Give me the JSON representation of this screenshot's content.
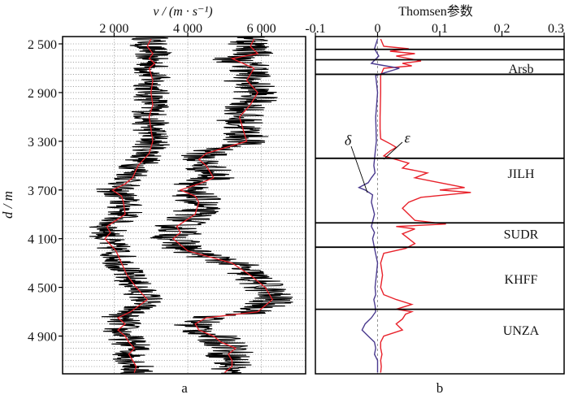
{
  "chart_data": [
    {
      "type": "line",
      "panel_label": "a",
      "top_axis_label": "v / (m · s⁻¹)",
      "left_axis_label": "d / m",
      "x_ticks": [
        "2 000",
        "4 000",
        "6 000"
      ],
      "x_tick_values": [
        2000,
        4000,
        6000
      ],
      "xlim": [
        600,
        7200
      ],
      "y_ticks": [
        "2 500",
        "2 900",
        "3 300",
        "3 700",
        "4 100",
        "4 500",
        "4 900"
      ],
      "y_tick_values": [
        2500,
        2900,
        3300,
        3700,
        4100,
        4500,
        4900
      ],
      "ylim": [
        2440,
        5210
      ],
      "grid": true,
      "series": [
        {
          "color": "#000000",
          "style": "raw log",
          "depth": [
            2460,
            2520,
            2580,
            2620,
            2660,
            2700,
            2800,
            2900,
            3000,
            3100,
            3200,
            3300,
            3400,
            3450,
            3500,
            3600,
            3650,
            3700,
            3750,
            3800,
            3900,
            4000,
            4050,
            4100,
            4200,
            4300,
            4400,
            4500,
            4600,
            4700,
            4750,
            4800,
            4850,
            4900,
            4950,
            5000,
            5050,
            5100,
            5150,
            5200
          ],
          "v": [
            3000,
            2900,
            3050,
            2950,
            3100,
            2950,
            3050,
            3000,
            3050,
            2950,
            3000,
            3050,
            2950,
            2800,
            2650,
            2500,
            2300,
            1950,
            2200,
            2250,
            2300,
            1800,
            1900,
            1750,
            2050,
            2200,
            2350,
            2600,
            2900,
            2450,
            2100,
            2300,
            2100,
            2300,
            2400,
            2550,
            2400,
            2500,
            2600,
            2550
          ],
          "jitter": 520
        },
        {
          "color": "#e8212a",
          "style": "smoothed",
          "depth": [
            2460,
            2520,
            2580,
            2620,
            2660,
            2700,
            2800,
            2900,
            3000,
            3100,
            3200,
            3300,
            3400,
            3450,
            3500,
            3600,
            3650,
            3700,
            3750,
            3800,
            3900,
            4000,
            4050,
            4100,
            4200,
            4300,
            4400,
            4500,
            4600,
            4700,
            4750,
            4800,
            4850,
            4900,
            4950,
            5000,
            5050,
            5100,
            5150,
            5200
          ],
          "v": [
            3000,
            2900,
            3050,
            2950,
            3100,
            2950,
            3050,
            3000,
            3050,
            2950,
            3000,
            3050,
            2950,
            2800,
            2650,
            2500,
            2300,
            1950,
            2200,
            2250,
            2300,
            1800,
            1900,
            1750,
            2050,
            2200,
            2350,
            2600,
            2900,
            2450,
            2100,
            2300,
            2100,
            2300,
            2400,
            2550,
            2400,
            2500,
            2600,
            2550
          ]
        },
        {
          "color": "#000000",
          "style": "raw log",
          "depth": [
            2460,
            2520,
            2580,
            2620,
            2660,
            2700,
            2800,
            2900,
            3000,
            3100,
            3200,
            3300,
            3400,
            3450,
            3500,
            3600,
            3650,
            3700,
            3750,
            3800,
            3900,
            4000,
            4050,
            4100,
            4200,
            4300,
            4400,
            4500,
            4600,
            4700,
            4750,
            4800,
            4850,
            4900,
            4950,
            5000,
            5050,
            5100,
            5150,
            5200
          ],
          "v": [
            5800,
            5700,
            5900,
            5200,
            5500,
            5800,
            5600,
            5900,
            5700,
            5400,
            5500,
            5600,
            4500,
            4300,
            4500,
            4700,
            4300,
            3800,
            4200,
            4300,
            4200,
            3700,
            3800,
            3600,
            4000,
            5200,
            5700,
            6100,
            6300,
            5900,
            4500,
            4200,
            4300,
            4700,
            4900,
            5300,
            5100,
            5200,
            5200,
            5000
          ],
          "jitter": 650
        },
        {
          "color": "#e8212a",
          "style": "smoothed",
          "depth": [
            2460,
            2520,
            2580,
            2620,
            2660,
            2700,
            2800,
            2900,
            3000,
            3100,
            3200,
            3300,
            3400,
            3450,
            3500,
            3600,
            3650,
            3700,
            3750,
            3800,
            3900,
            4000,
            4050,
            4100,
            4200,
            4300,
            4400,
            4500,
            4600,
            4700,
            4750,
            4800,
            4850,
            4900,
            4950,
            5000,
            5050,
            5100,
            5150,
            5200
          ],
          "v": [
            5800,
            5700,
            5900,
            5200,
            5500,
            5800,
            5600,
            5900,
            5700,
            5400,
            5500,
            5600,
            4500,
            4300,
            4500,
            4700,
            4300,
            3800,
            4200,
            4300,
            4200,
            3700,
            3800,
            3600,
            4000,
            5200,
            5700,
            6100,
            6300,
            5900,
            4500,
            4200,
            4300,
            4700,
            4900,
            5300,
            5100,
            5200,
            5200,
            5000
          ]
        }
      ]
    },
    {
      "type": "line",
      "panel_label": "b",
      "top_axis_label": "Thomsen参数",
      "x_ticks": [
        "-0.1",
        "0",
        "0.1",
        "0.2",
        "0.3"
      ],
      "x_tick_values": [
        -0.1,
        0,
        0.1,
        0.2,
        0.3
      ],
      "xlim": [
        -0.1,
        0.3
      ],
      "ylim": [
        2440,
        5210
      ],
      "grid": false,
      "series": [
        {
          "name": "ε",
          "color": "#e8212a",
          "depth": [
            2460,
            2520,
            2540,
            2560,
            2580,
            2600,
            2620,
            2640,
            2660,
            2680,
            2700,
            2760,
            2900,
            3100,
            3200,
            3280,
            3320,
            3350,
            3380,
            3420,
            3450,
            3480,
            3520,
            3560,
            3600,
            3640,
            3680,
            3700,
            3720,
            3760,
            3800,
            3850,
            3900,
            3950,
            3980,
            4000,
            4020,
            4060,
            4100,
            4140,
            4180,
            4220,
            4300,
            4400,
            4500,
            4560,
            4600,
            4640,
            4680,
            4700,
            4720,
            4760,
            4800,
            4850,
            4900,
            4950,
            5000,
            5050,
            5100,
            5150,
            5200
          ],
          "eps": [
            0.005,
            0.01,
            0.05,
            0.02,
            0.06,
            0.03,
            0.05,
            0.07,
            0.04,
            0.055,
            0.01,
            0.005,
            0.005,
            0.004,
            0.004,
            0.005,
            0.02,
            0.03,
            0.02,
            0.01,
            0.03,
            0.05,
            0.04,
            0.08,
            0.06,
            0.1,
            0.14,
            0.1,
            0.15,
            0.07,
            0.05,
            0.04,
            0.05,
            0.06,
            0.11,
            0.03,
            0.06,
            0.04,
            0.05,
            0.06,
            0.045,
            0.01,
            0.005,
            0.008,
            0.005,
            0.01,
            0.03,
            0.055,
            0.03,
            0.055,
            0.045,
            0.04,
            0.03,
            0.04,
            0.01,
            0.005,
            0.005,
            0.007,
            0.005,
            0.006,
            0.005
          ]
        },
        {
          "name": "δ",
          "color": "#4a3a8e",
          "depth": [
            2460,
            2540,
            2600,
            2660,
            2700,
            2760,
            2900,
            3100,
            3300,
            3400,
            3500,
            3560,
            3600,
            3640,
            3680,
            3700,
            3740,
            3800,
            3900,
            4000,
            4050,
            4100,
            4200,
            4300,
            4400,
            4500,
            4560,
            4600,
            4650,
            4700,
            4750,
            4800,
            4850,
            4900,
            4950,
            5000,
            5050,
            5100,
            5200
          ],
          "delta": [
            0.0,
            -0.005,
            0.002,
            -0.01,
            0.035,
            -0.003,
            0.0,
            -0.003,
            -0.002,
            -0.004,
            -0.006,
            -0.004,
            -0.01,
            -0.015,
            -0.03,
            -0.02,
            -0.008,
            -0.01,
            -0.005,
            -0.01,
            -0.005,
            -0.008,
            -0.004,
            0.0,
            -0.002,
            -0.004,
            -0.003,
            -0.006,
            -0.004,
            -0.003,
            -0.01,
            -0.02,
            -0.025,
            -0.015,
            -0.005,
            -0.003,
            -0.005,
            0.0,
            0.0
          ]
        }
      ],
      "layer_boundaries": [
        2545,
        2630,
        2750,
        3440,
        3970,
        4170,
        4680
      ],
      "formations": [
        {
          "name": "Arsb",
          "depth": 2700
        },
        {
          "name": "JILH",
          "depth": 3560
        },
        {
          "name": "SUDR",
          "depth": 4060
        },
        {
          "name": "KHFF",
          "depth": 4430
        },
        {
          "name": "UNZA",
          "depth": 4850
        }
      ],
      "annotations": [
        {
          "text": "δ",
          "depth": 3330,
          "x": -0.04
        },
        {
          "text": "ε",
          "depth": 3310,
          "x": 0.05
        }
      ]
    }
  ]
}
